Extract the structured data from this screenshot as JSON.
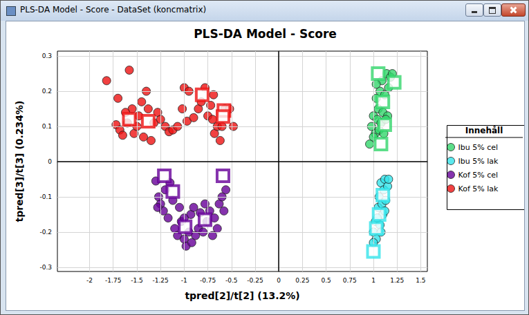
{
  "window": {
    "title": "PLS-DA Model - Score - DataSet (koncmatrix)"
  },
  "chart_data": {
    "type": "scatter",
    "title": "PLS-DA Model - Score",
    "x_label": "tpred[2]/t[2] (13.2%)",
    "y_label": "tpred[3]/t[3] (0.234%)",
    "legend_title": "Innehåll",
    "legend": "right",
    "grid": true,
    "xlim": [
      -2.34,
      1.57
    ],
    "xticks": [
      -2,
      -1.75,
      -1.5,
      -1.25,
      -1,
      -0.75,
      -0.5,
      -0.25,
      0,
      0.25,
      0.5,
      0.75,
      1,
      1.25,
      1.5
    ],
    "ylim": [
      -0.312,
      0.314
    ],
    "yticks": [
      -0.3,
      -0.2,
      -0.1,
      0,
      0.1,
      0.2,
      0.3
    ],
    "series": [
      {
        "name": "Ibu 5% cel",
        "color": "#33d66b",
        "marker": "circle",
        "x": [
          0.96,
          0.98,
          1.0,
          1.02,
          1.03,
          1.04,
          1.05,
          1.06,
          1.07,
          1.08,
          1.09,
          1.1,
          1.11,
          1.12,
          1.14,
          1.15,
          1.16,
          1.18,
          1.2,
          1.03,
          1.0,
          1.13
        ],
        "values": [
          0.05,
          0.1,
          0.13,
          0.08,
          0.18,
          0.12,
          0.15,
          0.09,
          0.2,
          0.11,
          0.23,
          0.14,
          0.08,
          0.19,
          0.25,
          0.13,
          0.21,
          0.24,
          0.25,
          0.22,
          0.07,
          0.12
        ]
      },
      {
        "name": "Ibu 5% lak",
        "color": "#33e3ea",
        "marker": "circle",
        "x": [
          1.0,
          1.02,
          1.03,
          1.05,
          1.06,
          1.07,
          1.08,
          1.09,
          1.1,
          1.11,
          1.12,
          1.13,
          1.15,
          1.16,
          1.04,
          1.0,
          1.12,
          1.08
        ],
        "values": [
          -0.2,
          -0.17,
          -0.22,
          -0.13,
          -0.1,
          -0.18,
          -0.06,
          -0.12,
          -0.15,
          -0.08,
          -0.05,
          -0.11,
          -0.07,
          -0.05,
          -0.16,
          -0.23,
          -0.14,
          -0.2
        ]
      },
      {
        "name": "Kof 5% cel",
        "color": "#660099",
        "marker": "circle",
        "x": [
          -1.3,
          -1.27,
          -1.25,
          -1.22,
          -1.2,
          -1.17,
          -1.15,
          -1.12,
          -1.1,
          -1.07,
          -1.05,
          -1.03,
          -1.0,
          -0.98,
          -0.95,
          -0.93,
          -0.9,
          -0.88,
          -0.85,
          -0.83,
          -0.8,
          -0.78,
          -0.76,
          -0.73,
          -0.7,
          -0.68,
          -0.65,
          -0.63,
          -0.6,
          -0.58,
          -0.56,
          -1.28,
          -1.0,
          -0.92
        ],
        "values": [
          -0.055,
          -0.1,
          -0.12,
          -0.14,
          -0.08,
          -0.16,
          -0.06,
          -0.11,
          -0.19,
          -0.21,
          -0.13,
          -0.17,
          -0.22,
          -0.24,
          -0.2,
          -0.15,
          -0.13,
          -0.21,
          -0.19,
          -0.145,
          -0.2,
          -0.12,
          -0.17,
          -0.14,
          -0.21,
          -0.16,
          -0.19,
          -0.12,
          -0.1,
          -0.14,
          -0.08,
          -0.13,
          -0.16,
          -0.23
        ]
      },
      {
        "name": "Kof 5% lak",
        "color": "#ee1111",
        "marker": "circle",
        "x": [
          -1.82,
          -1.72,
          -1.68,
          -1.65,
          -1.6,
          -1.58,
          -1.55,
          -1.53,
          -1.5,
          -1.48,
          -1.45,
          -1.43,
          -1.4,
          -1.38,
          -1.35,
          -1.32,
          -1.28,
          -1.25,
          -1.2,
          -1.16,
          -1.12,
          -1.07,
          -1.02,
          -1.0,
          -0.97,
          -0.95,
          -0.9,
          -0.85,
          -0.82,
          -0.78,
          -0.75,
          -0.72,
          -0.7,
          -0.68,
          -0.65,
          -0.62,
          -0.6,
          -0.57,
          -0.52,
          -0.48,
          -1.62,
          -1.7,
          -0.69
        ],
        "values": [
          0.23,
          0.105,
          0.09,
          0.075,
          0.11,
          0.26,
          0.15,
          0.08,
          0.1,
          0.13,
          0.17,
          0.07,
          0.2,
          0.15,
          0.06,
          0.11,
          0.14,
          0.12,
          0.1,
          0.085,
          0.09,
          0.1,
          0.15,
          0.21,
          0.115,
          0.2,
          0.125,
          0.15,
          0.17,
          0.21,
          0.13,
          0.16,
          0.12,
          0.08,
          0.1,
          0.06,
          0.1,
          0.15,
          0.15,
          0.1,
          0.14,
          0.18,
          0.19
        ]
      },
      {
        "name": "Ibu 5% cel",
        "color": "#33d66b",
        "marker": "square",
        "x": [
          1.05,
          1.22,
          1.1,
          1.12,
          1.08
        ],
        "values": [
          0.25,
          0.225,
          0.17,
          0.105,
          0.05
        ]
      },
      {
        "name": "Ibu 5% lak",
        "color": "#33e3ea",
        "marker": "square",
        "x": [
          1.1,
          1.06,
          1.03,
          1.0
        ],
        "values": [
          -0.095,
          -0.15,
          -0.19,
          -0.255
        ]
      },
      {
        "name": "Kof 5% cel",
        "color": "#660099",
        "marker": "square",
        "x": [
          -1.21,
          -1.12,
          -0.99,
          -0.78,
          -0.59
        ],
        "values": [
          -0.04,
          -0.085,
          -0.185,
          -0.165,
          -0.04
        ]
      },
      {
        "name": "Kof 5% lak",
        "color": "#ee1111",
        "marker": "square",
        "x": [
          -1.58,
          -1.38,
          -0.81,
          -0.58,
          -0.59
        ],
        "values": [
          0.12,
          0.115,
          0.19,
          0.145,
          0.128
        ]
      }
    ]
  }
}
